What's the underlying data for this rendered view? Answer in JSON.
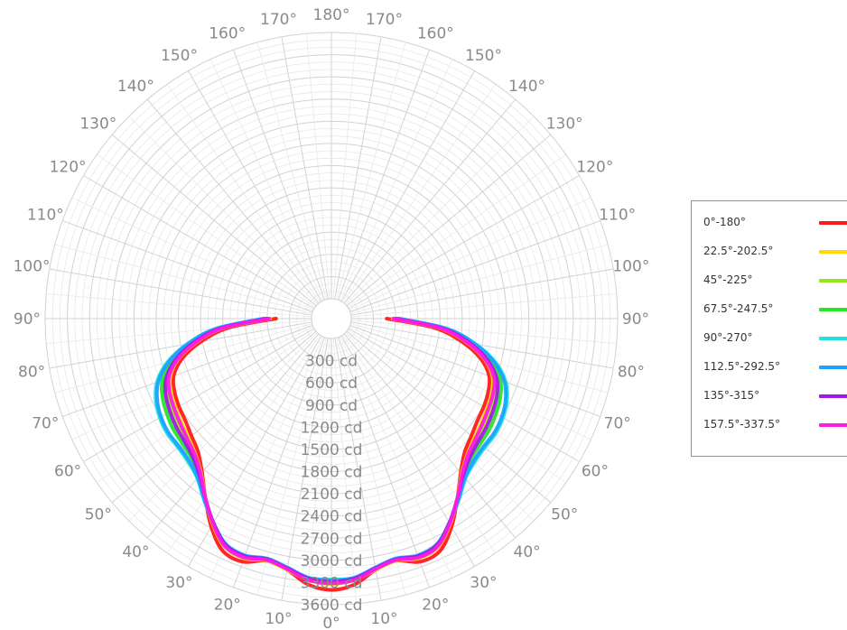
{
  "chart_data": {
    "type": "polar-line",
    "title": "",
    "unit": "cd",
    "radial_ticks": [
      "300 cd",
      "600 cd",
      "900 cd",
      "1200 cd",
      "1500 cd",
      "1800 cd",
      "2100 cd",
      "2400 cd",
      "2700 cd",
      "3000 cd",
      "3300 cd",
      "3600 cd"
    ],
    "angle_labels": [
      "0°",
      "10°",
      "20°",
      "30°",
      "40°",
      "50°",
      "60°",
      "70°",
      "80°",
      "90°",
      "100°",
      "110°",
      "120°",
      "130°",
      "140°",
      "150°",
      "160°",
      "170°",
      "180°",
      "170°",
      "160°",
      "150°",
      "140°",
      "130°",
      "120°",
      "110°",
      "100°",
      "90°",
      "80°",
      "70°",
      "60°",
      "50°",
      "40°",
      "30°",
      "20°",
      "10°"
    ],
    "rmax": 3600,
    "angles_deg": [
      0,
      5,
      10,
      15,
      20,
      25,
      30,
      35,
      40,
      45,
      50,
      55,
      60,
      65,
      70,
      75,
      80,
      85,
      90
    ],
    "series": [
      {
        "name": "0°-180°",
        "color": "#ff1a1a",
        "values": [
          3400,
          3340,
          3180,
          3120,
          3230,
          3200,
          2980,
          2700,
          2450,
          2280,
          2200,
          2140,
          2110,
          2070,
          2000,
          1820,
          1520,
          1120,
          480
        ]
      },
      {
        "name": "22.5°-202.5°",
        "color": "#ffd800",
        "values": [
          3320,
          3280,
          3180,
          3120,
          3180,
          3140,
          2940,
          2700,
          2470,
          2330,
          2250,
          2200,
          2160,
          2120,
          2050,
          1880,
          1590,
          1200,
          560
        ]
      },
      {
        "name": "45°-225°",
        "color": "#99e61a",
        "values": [
          3300,
          3270,
          3170,
          3110,
          3160,
          3120,
          2930,
          2700,
          2490,
          2360,
          2300,
          2260,
          2220,
          2180,
          2100,
          1920,
          1630,
          1240,
          600
        ]
      },
      {
        "name": "67.5°-247.5°",
        "color": "#26e626",
        "values": [
          3280,
          3260,
          3160,
          3100,
          3150,
          3110,
          2920,
          2710,
          2510,
          2400,
          2360,
          2340,
          2300,
          2250,
          2160,
          1960,
          1660,
          1270,
          620
        ]
      },
      {
        "name": "90°-270°",
        "color": "#22e0e0",
        "values": [
          3260,
          3250,
          3150,
          3090,
          3140,
          3100,
          2920,
          2730,
          2550,
          2470,
          2440,
          2440,
          2410,
          2350,
          2240,
          2030,
          1710,
          1300,
          650
        ]
      },
      {
        "name": "112.5°-292.5°",
        "color": "#1aa3ff",
        "values": [
          3270,
          3250,
          3150,
          3090,
          3140,
          3100,
          2920,
          2720,
          2540,
          2450,
          2420,
          2420,
          2390,
          2330,
          2220,
          2010,
          1700,
          1290,
          640
        ]
      },
      {
        "name": "135°-315°",
        "color": "#a01ae6",
        "values": [
          3290,
          3260,
          3160,
          3100,
          3150,
          3110,
          2920,
          2700,
          2500,
          2380,
          2320,
          2290,
          2250,
          2200,
          2110,
          1920,
          1630,
          1240,
          600
        ]
      },
      {
        "name": "157.5°-337.5°",
        "color": "#ff1ae6",
        "values": [
          3310,
          3280,
          3170,
          3110,
          3170,
          3130,
          2930,
          2700,
          2480,
          2340,
          2270,
          2220,
          2180,
          2140,
          2070,
          1890,
          1600,
          1210,
          570
        ]
      }
    ],
    "grid": true,
    "legend_position": "right"
  }
}
